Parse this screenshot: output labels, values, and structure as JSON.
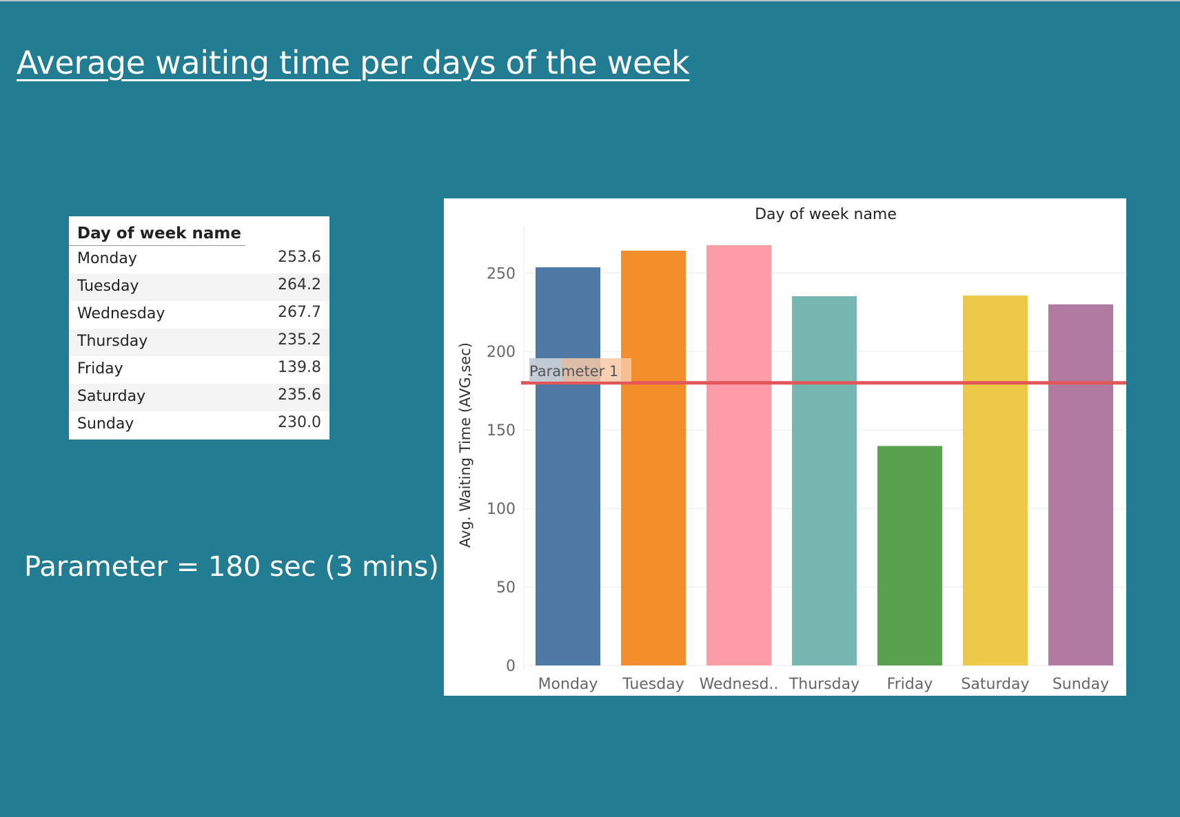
{
  "page": {
    "title": "Average waiting time per days of the week",
    "parameter_note": "Parameter = 180 sec (3 mins)"
  },
  "table": {
    "header": "Day of week name",
    "rows": [
      {
        "day": "Monday",
        "value": "253.6"
      },
      {
        "day": "Tuesday",
        "value": "264.2"
      },
      {
        "day": "Wednesday",
        "value": "267.7"
      },
      {
        "day": "Thursday",
        "value": "235.2"
      },
      {
        "day": "Friday",
        "value": "139.8"
      },
      {
        "day": "Saturday",
        "value": "235.6"
      },
      {
        "day": "Sunday",
        "value": "230.0"
      }
    ]
  },
  "chart_data": {
    "type": "bar",
    "title": "Day of week name",
    "ylabel": "Avg. Waiting Time (AVG,sec)",
    "categories": [
      "Monday",
      "Tuesday",
      "Wednesd..",
      "Thursday",
      "Friday",
      "Saturday",
      "Sunday"
    ],
    "values": [
      253.6,
      264.2,
      267.7,
      235.2,
      139.8,
      235.6,
      230.0
    ],
    "colors": [
      "#4e79a7",
      "#f28e2b",
      "#ff9da7",
      "#76b7b2",
      "#59a14f",
      "#edc948",
      "#b07aa1"
    ],
    "ylim": [
      0,
      280
    ],
    "yticks": [
      0,
      50,
      100,
      150,
      200,
      250
    ],
    "grid": true,
    "reference_line": {
      "label": "Parameter 1",
      "value": 180,
      "color": "#e15759"
    }
  }
}
